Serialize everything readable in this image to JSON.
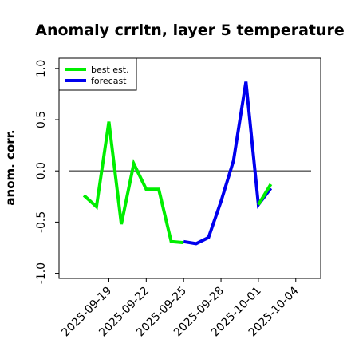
{
  "chart_data": {
    "type": "line",
    "title": "Anomaly crrltn, layer 5 temperature",
    "xlabel": "",
    "ylabel": "anom. corr.",
    "ylim": [
      -1.05,
      1.1
    ],
    "xlim": [
      "2025-09-15",
      "2025-10-06"
    ],
    "yticks": [
      1.0,
      0.5,
      0.0,
      -0.5,
      -1.0
    ],
    "ytick_labels": [
      "1.0",
      "0.5",
      "0.0",
      "-0.5",
      "-1.0"
    ],
    "xticks": [
      "2025-09-19",
      "2025-09-22",
      "2025-09-25",
      "2025-09-28",
      "2025-10-01",
      "2025-10-04"
    ],
    "xtick_labels": [
      "2025-09-19",
      "2025-09-22",
      "2025-09-25",
      "2025-09-28",
      "2025-10-01",
      "2025-10-04"
    ],
    "xtick_colors": [
      "#000000",
      "#000000",
      "#2a8a2a",
      "#000000",
      "#000000",
      "#000000"
    ],
    "zero_line": 0.0,
    "grid": false,
    "legend_position": "top-left",
    "series": [
      {
        "name": "best est.",
        "color": "#00ee00",
        "x": [
          "2025-09-17",
          "2025-09-18",
          "2025-09-19",
          "2025-09-20",
          "2025-09-21",
          "2025-09-22",
          "2025-09-23",
          "2025-09-24",
          "2025-09-25"
        ],
        "y": [
          -0.24,
          -0.35,
          0.48,
          -0.52,
          0.07,
          -0.18,
          -0.18,
          -0.69,
          -0.7
        ]
      },
      {
        "name": "forecast",
        "color": "#0000ee",
        "x": [
          "2025-09-25",
          "2025-09-26",
          "2025-09-27",
          "2025-09-28",
          "2025-09-29",
          "2025-09-30",
          "2025-10-01",
          "2025-10-02"
        ],
        "y": [
          -0.69,
          -0.71,
          -0.65,
          -0.3,
          0.1,
          0.87,
          -0.33,
          -0.17
        ]
      },
      {
        "name": "",
        "color": "#00ee00",
        "x": [
          "2025-10-01",
          "2025-10-02"
        ],
        "y": [
          -0.33,
          -0.13
        ]
      }
    ]
  }
}
